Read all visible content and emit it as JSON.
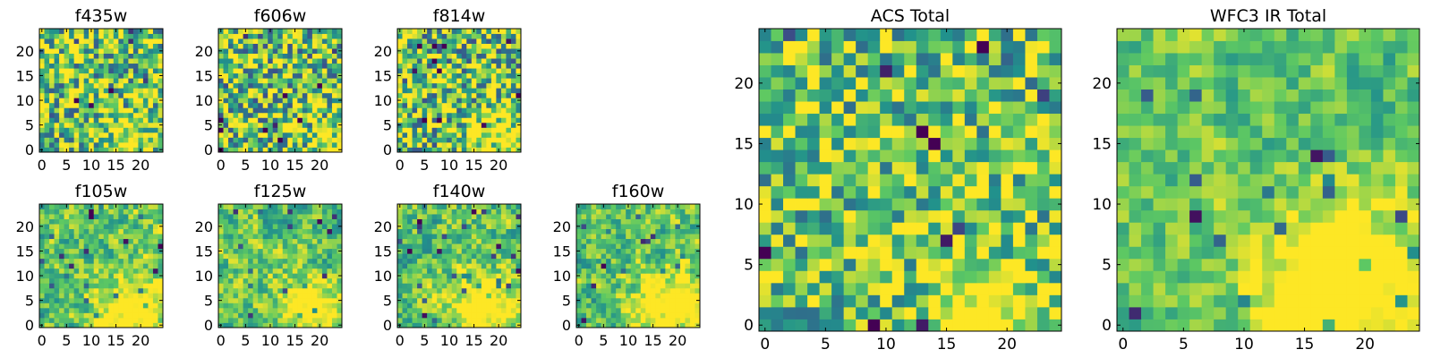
{
  "chart_data": [
    {
      "type": "heatmap",
      "title": "f435w",
      "grid_size": 25,
      "xlim": [
        0,
        24
      ],
      "ylim": [
        0,
        24
      ],
      "xticks": [
        0,
        5,
        10,
        15,
        20
      ],
      "yticks": [
        0,
        5,
        10,
        15,
        20
      ],
      "seed": 11,
      "noise": 0.55,
      "smooth": 0,
      "hotspot": [
        18,
        3,
        0.25,
        4
      ]
    },
    {
      "type": "heatmap",
      "title": "f606w",
      "grid_size": 25,
      "xlim": [
        0,
        24
      ],
      "ylim": [
        0,
        24
      ],
      "xticks": [
        0,
        5,
        10,
        15,
        20
      ],
      "yticks": [
        0,
        5,
        10,
        15,
        20
      ],
      "seed": 23,
      "noise": 0.6,
      "smooth": 0,
      "hotspot": [
        20,
        3,
        0.3,
        4
      ]
    },
    {
      "type": "heatmap",
      "title": "f814w",
      "grid_size": 25,
      "xlim": [
        0,
        24
      ],
      "ylim": [
        0,
        24
      ],
      "xticks": [
        0,
        5,
        10,
        15,
        20
      ],
      "yticks": [
        0,
        5,
        10,
        15,
        20
      ],
      "seed": 37,
      "noise": 0.6,
      "smooth": 0,
      "hotspot": [
        19,
        2,
        0.45,
        4
      ]
    },
    {
      "type": "heatmap",
      "title": "f105w",
      "grid_size": 25,
      "xlim": [
        0,
        24
      ],
      "ylim": [
        0,
        24
      ],
      "xticks": [
        0,
        5,
        10,
        15,
        20
      ],
      "yticks": [
        0,
        5,
        10,
        15,
        20
      ],
      "seed": 41,
      "noise": 0.5,
      "smooth": 1,
      "hotspot": [
        18,
        3,
        0.45,
        5
      ]
    },
    {
      "type": "heatmap",
      "title": "f125w",
      "grid_size": 25,
      "xlim": [
        0,
        24
      ],
      "ylim": [
        0,
        24
      ],
      "xticks": [
        0,
        5,
        10,
        15,
        20
      ],
      "yticks": [
        0,
        5,
        10,
        15,
        20
      ],
      "seed": 53,
      "noise": 0.5,
      "smooth": 1,
      "hotspot": [
        19,
        3,
        0.45,
        5
      ]
    },
    {
      "type": "heatmap",
      "title": "f140w",
      "grid_size": 25,
      "xlim": [
        0,
        24
      ],
      "ylim": [
        0,
        24
      ],
      "xticks": [
        0,
        5,
        10,
        15,
        20
      ],
      "yticks": [
        0,
        5,
        10,
        15,
        20
      ],
      "seed": 67,
      "noise": 0.5,
      "smooth": 1,
      "hotspot": [
        17,
        3,
        0.5,
        5
      ]
    },
    {
      "type": "heatmap",
      "title": "f160w",
      "grid_size": 25,
      "xlim": [
        0,
        24
      ],
      "ylim": [
        0,
        24
      ],
      "xticks": [
        0,
        5,
        10,
        15,
        20
      ],
      "yticks": [
        0,
        5,
        10,
        15,
        20
      ],
      "seed": 79,
      "noise": 0.5,
      "smooth": 1,
      "hotspot": [
        18,
        3,
        0.55,
        5
      ]
    },
    {
      "type": "heatmap",
      "title": "ACS Total",
      "grid_size": 25,
      "xlim": [
        0,
        24
      ],
      "ylim": [
        0,
        24
      ],
      "xticks": [
        0,
        5,
        10,
        15,
        20
      ],
      "yticks": [
        0,
        5,
        10,
        15,
        20
      ],
      "seed": 97,
      "noise": 0.45,
      "smooth": 0,
      "hotspot": [
        18,
        1,
        0.5,
        3
      ]
    },
    {
      "type": "heatmap",
      "title": "WFC3 IR Total",
      "grid_size": 25,
      "xlim": [
        0,
        24
      ],
      "ylim": [
        0,
        24
      ],
      "xticks": [
        0,
        5,
        10,
        15,
        20
      ],
      "yticks": [
        0,
        5,
        10,
        15,
        20
      ],
      "seed": 131,
      "noise": 0.4,
      "smooth": 1,
      "hotspot": [
        18,
        3,
        0.6,
        5
      ]
    }
  ],
  "colormap": [
    "#440154",
    "#3b528b",
    "#21918c",
    "#5ec962",
    "#fde725"
  ]
}
